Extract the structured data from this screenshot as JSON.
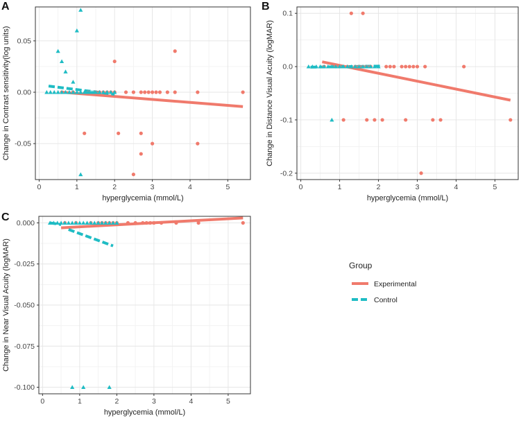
{
  "colors": {
    "experimental": "#F07A6C",
    "control": "#1FBCC4",
    "grid_major": "#e6e6e6",
    "grid_minor": "#f3f3f3",
    "frame": "#333333",
    "tick_text": "#444444",
    "label_text": "#222222"
  },
  "legend": {
    "title": "Group",
    "items": [
      {
        "label": "Experimental",
        "color_key": "experimental"
      },
      {
        "label": "Control",
        "color_key": "control"
      }
    ]
  },
  "chart_data": [
    {
      "panel": "A",
      "type": "scatter",
      "xlabel": "hyperglycemia (mmol/L)",
      "ylabel": "Change in Contrast sensitivity(log units)",
      "xlim": [
        -0.1,
        5.6
      ],
      "ylim": [
        -0.085,
        0.083
      ],
      "xticks": [
        0,
        1,
        2,
        3,
        4,
        5
      ],
      "xtick_labels": [
        "0",
        "1",
        "2",
        "3",
        "4",
        "5"
      ],
      "yticks": [
        -0.05,
        0.0,
        0.05
      ],
      "ytick_labels": [
        "-0.05",
        "0.00",
        "0.05"
      ],
      "experimental_points": [
        [
          0.6,
          0.0
        ],
        [
          0.9,
          0.0
        ],
        [
          1.3,
          0.0
        ],
        [
          1.5,
          0.0
        ],
        [
          1.6,
          0.0
        ],
        [
          1.7,
          0.0
        ],
        [
          1.8,
          0.0
        ],
        [
          1.9,
          0.0
        ],
        [
          2.0,
          0.0
        ],
        [
          2.3,
          0.0
        ],
        [
          2.5,
          0.0
        ],
        [
          2.7,
          0.0
        ],
        [
          2.8,
          0.0
        ],
        [
          2.9,
          0.0
        ],
        [
          3.0,
          0.0
        ],
        [
          3.1,
          0.0
        ],
        [
          3.2,
          0.0
        ],
        [
          3.4,
          0.0
        ],
        [
          3.6,
          0.0
        ],
        [
          4.2,
          0.0
        ],
        [
          5.4,
          0.0
        ],
        [
          2.0,
          0.03
        ],
        [
          3.6,
          0.04
        ],
        [
          1.2,
          -0.04
        ],
        [
          2.1,
          -0.04
        ],
        [
          2.7,
          -0.04
        ],
        [
          3.0,
          -0.05
        ],
        [
          4.2,
          -0.05
        ],
        [
          2.7,
          -0.06
        ],
        [
          2.5,
          -0.08
        ]
      ],
      "control_points": [
        [
          0.2,
          0.0
        ],
        [
          0.3,
          0.0
        ],
        [
          0.4,
          0.0
        ],
        [
          0.5,
          0.0
        ],
        [
          0.6,
          0.0
        ],
        [
          0.7,
          0.0
        ],
        [
          0.8,
          0.0
        ],
        [
          0.9,
          0.0
        ],
        [
          1.0,
          0.0
        ],
        [
          1.1,
          0.0
        ],
        [
          1.2,
          0.0
        ],
        [
          1.25,
          0.0
        ],
        [
          1.3,
          0.0
        ],
        [
          1.35,
          0.0
        ],
        [
          1.4,
          0.0
        ],
        [
          1.45,
          0.0
        ],
        [
          1.5,
          0.0
        ],
        [
          1.6,
          0.0
        ],
        [
          1.7,
          0.0
        ],
        [
          1.8,
          0.0
        ],
        [
          1.9,
          0.0
        ],
        [
          2.0,
          0.0
        ],
        [
          0.5,
          0.04
        ],
        [
          0.6,
          0.03
        ],
        [
          0.7,
          0.02
        ],
        [
          0.9,
          0.01
        ],
        [
          1.0,
          0.06
        ],
        [
          1.1,
          0.08
        ],
        [
          1.1,
          -0.08
        ]
      ],
      "experimental_line": [
        0.6,
        0.0,
        5.4,
        -0.014
      ],
      "control_line": [
        0.25,
        0.006,
        2.0,
        -0.002
      ]
    },
    {
      "panel": "B",
      "type": "scatter",
      "xlabel": "hyperglycemia (mmol/L)",
      "ylabel": "Change in Distance Visual Acuity (logMAR)",
      "xlim": [
        -0.1,
        5.6
      ],
      "ylim": [
        -0.212,
        0.112
      ],
      "xticks": [
        0,
        1,
        2,
        3,
        4,
        5
      ],
      "xtick_labels": [
        "0",
        "1",
        "2",
        "3",
        "4",
        "5"
      ],
      "yticks": [
        -0.2,
        -0.1,
        0.0,
        0.1
      ],
      "ytick_labels": [
        "-0.2",
        "-0.1",
        "0.0",
        "0.1"
      ],
      "experimental_points": [
        [
          0.6,
          0.0
        ],
        [
          0.9,
          0.0
        ],
        [
          1.0,
          0.0
        ],
        [
          1.2,
          0.0
        ],
        [
          1.4,
          0.0
        ],
        [
          1.5,
          0.0
        ],
        [
          1.6,
          0.0
        ],
        [
          1.7,
          0.0
        ],
        [
          1.8,
          0.0
        ],
        [
          2.2,
          0.0
        ],
        [
          2.3,
          0.0
        ],
        [
          2.4,
          0.0
        ],
        [
          2.6,
          0.0
        ],
        [
          2.7,
          0.0
        ],
        [
          2.8,
          0.0
        ],
        [
          2.9,
          0.0
        ],
        [
          3.0,
          0.0
        ],
        [
          3.2,
          0.0
        ],
        [
          4.2,
          0.0
        ],
        [
          1.3,
          0.1
        ],
        [
          1.6,
          0.1
        ],
        [
          1.1,
          -0.1
        ],
        [
          1.7,
          -0.1
        ],
        [
          1.9,
          -0.1
        ],
        [
          2.1,
          -0.1
        ],
        [
          2.7,
          -0.1
        ],
        [
          3.4,
          -0.1
        ],
        [
          3.6,
          -0.1
        ],
        [
          5.4,
          -0.1
        ],
        [
          3.1,
          -0.2
        ]
      ],
      "control_points": [
        [
          0.2,
          0.0
        ],
        [
          0.3,
          0.0
        ],
        [
          0.4,
          0.0
        ],
        [
          0.5,
          0.0
        ],
        [
          0.6,
          0.0
        ],
        [
          0.7,
          0.0
        ],
        [
          0.8,
          0.0
        ],
        [
          0.9,
          0.0
        ],
        [
          1.0,
          0.0
        ],
        [
          1.1,
          0.0
        ],
        [
          1.2,
          0.0
        ],
        [
          1.3,
          0.0
        ],
        [
          1.4,
          0.0
        ],
        [
          1.5,
          0.0
        ],
        [
          1.6,
          0.0
        ],
        [
          1.7,
          0.0
        ],
        [
          1.8,
          0.0
        ],
        [
          1.9,
          0.0
        ],
        [
          2.0,
          0.0
        ],
        [
          0.8,
          -0.1
        ]
      ],
      "experimental_line": [
        0.55,
        0.009,
        5.4,
        -0.063
      ],
      "control_line": [
        0.25,
        -0.001,
        2.1,
        0.001
      ]
    },
    {
      "panel": "C",
      "type": "scatter",
      "xlabel": "hyperglycemia (mmol/L)",
      "ylabel": "Change in Near Visual Acuity (logMAR)",
      "xlim": [
        -0.1,
        5.6
      ],
      "ylim": [
        -0.104,
        0.004
      ],
      "xticks": [
        0,
        1,
        2,
        3,
        4,
        5
      ],
      "xtick_labels": [
        "0",
        "1",
        "2",
        "3",
        "4",
        "5"
      ],
      "yticks": [
        -0.1,
        -0.075,
        -0.05,
        -0.025,
        0.0
      ],
      "ytick_labels": [
        "-0.100",
        "-0.075",
        "-0.050",
        "-0.025",
        "0.000"
      ],
      "experimental_points": [
        [
          0.6,
          0.0
        ],
        [
          0.9,
          0.0
        ],
        [
          1.3,
          0.0
        ],
        [
          1.5,
          0.0
        ],
        [
          1.6,
          0.0
        ],
        [
          1.7,
          0.0
        ],
        [
          1.8,
          0.0
        ],
        [
          1.9,
          0.0
        ],
        [
          2.0,
          0.0
        ],
        [
          2.3,
          0.0
        ],
        [
          2.5,
          0.0
        ],
        [
          2.7,
          0.0
        ],
        [
          2.8,
          0.0
        ],
        [
          2.9,
          0.0
        ],
        [
          3.0,
          0.0
        ],
        [
          3.2,
          0.0
        ],
        [
          3.6,
          0.0
        ],
        [
          4.2,
          0.0
        ],
        [
          5.4,
          0.0
        ]
      ],
      "control_points": [
        [
          0.2,
          0.0
        ],
        [
          0.3,
          0.0
        ],
        [
          0.4,
          0.0
        ],
        [
          0.5,
          0.0
        ],
        [
          0.6,
          0.0
        ],
        [
          0.7,
          0.0
        ],
        [
          0.8,
          0.0
        ],
        [
          0.9,
          0.0
        ],
        [
          1.0,
          0.0
        ],
        [
          1.1,
          0.0
        ],
        [
          1.2,
          0.0
        ],
        [
          1.3,
          0.0
        ],
        [
          1.4,
          0.0
        ],
        [
          1.5,
          0.0
        ],
        [
          1.6,
          0.0
        ],
        [
          1.7,
          0.0
        ],
        [
          1.8,
          0.0
        ],
        [
          1.9,
          0.0
        ],
        [
          2.0,
          0.0
        ],
        [
          0.8,
          -0.1
        ],
        [
          1.1,
          -0.1
        ],
        [
          1.8,
          -0.1
        ]
      ],
      "experimental_line": [
        0.5,
        -0.003,
        5.4,
        0.003
      ],
      "control_lines": [
        [
          0.2,
          0.0,
          0.5,
          -0.001
        ],
        [
          0.7,
          -0.004,
          1.9,
          -0.014
        ]
      ]
    }
  ]
}
